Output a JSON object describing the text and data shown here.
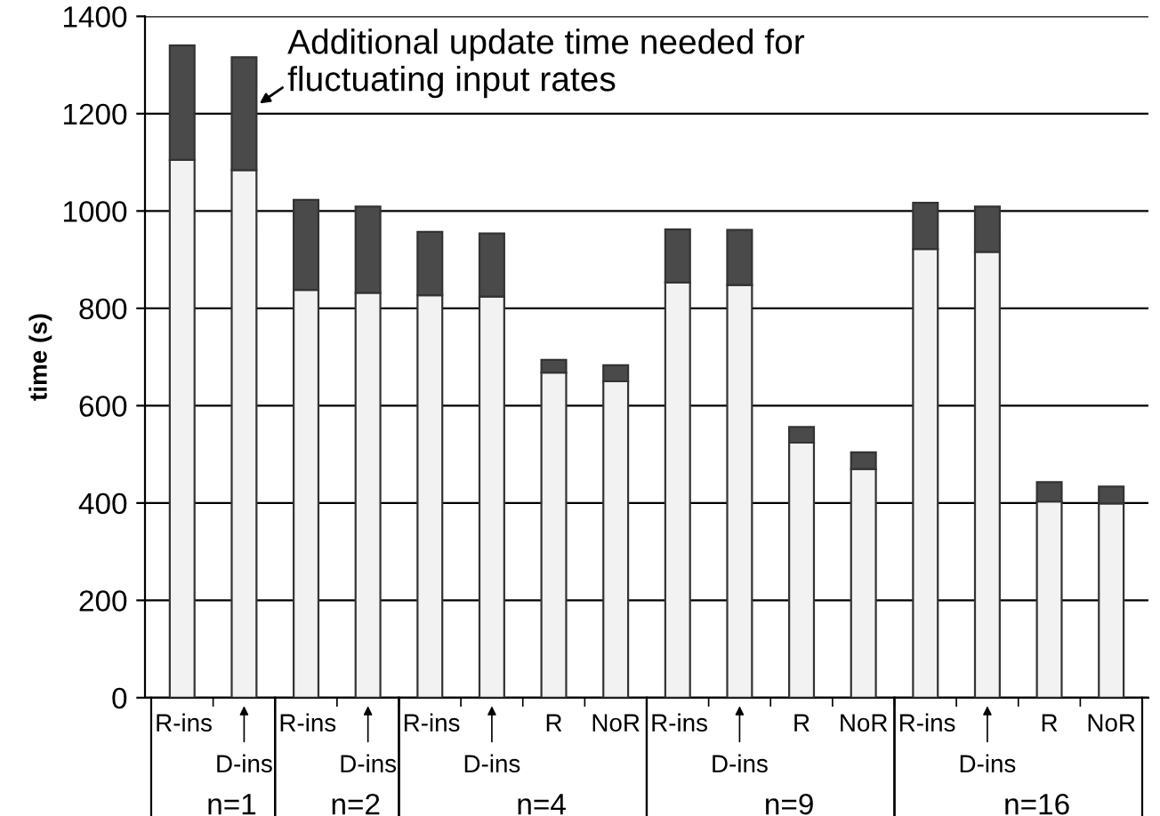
{
  "chart_data": {
    "type": "bar",
    "ylabel": "time (s)",
    "stacked": true,
    "grid": "y",
    "categories": [
      "R-ins",
      "D-ins",
      "R-ins",
      "D-ins",
      "R-ins",
      "D-ins",
      "R",
      "NoR",
      "R-ins",
      "D-ins",
      "R",
      "NoR",
      "R-ins",
      "D-ins",
      "R",
      "NoR"
    ],
    "series": [
      {
        "color": "#f2f2f2",
        "values": [
          1105,
          1084,
          838,
          832,
          827,
          824,
          668,
          650,
          853,
          848,
          524,
          470,
          922,
          916,
          403,
          399
        ]
      },
      {
        "color": "#4a4a4a",
        "values": [
          235,
          232,
          185,
          177,
          130,
          130,
          26,
          33,
          109,
          113,
          32,
          34,
          95,
          93,
          40,
          35
        ]
      }
    ],
    "ylim": [
      0,
      1400
    ],
    "yticks": [
      0,
      200,
      400,
      600,
      800,
      1000,
      1200,
      1400
    ],
    "annotations": [
      "Additional update time needed for\nfluctuating input rates",
      "n=1",
      "n=2",
      "n=4",
      "n=9",
      "n=16"
    ]
  }
}
